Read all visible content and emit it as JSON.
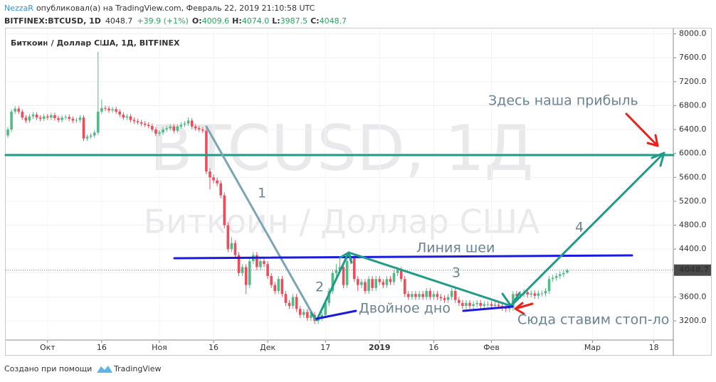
{
  "header": {
    "author": "NezzaR",
    "published": "опубликовал(а) на TradingView.com, Февраль 22, 2019 21:10:58 UTC",
    "symbol": "BITFINEX:BTCUSD, 1D",
    "last": "4048.7",
    "change": "+39.9 (+1%)",
    "o_label": "O:",
    "open": "4009.6",
    "h_label": "H:",
    "high": "4074.0",
    "l_label": "L:",
    "low": "3987.5",
    "c_label": "C:",
    "close": "4048.7"
  },
  "footer": {
    "text": "Создано при помощи",
    "brand": "TradingView"
  },
  "chart_data": {
    "type": "candlestick",
    "title": "Биткоин / Доллар США, 1Д, BITFINEX",
    "watermark": [
      "BTCUSD, 1Д",
      "Биткоин / Доллар США"
    ],
    "annotations": [
      "1",
      "2",
      "3",
      "4",
      "Линия шеи",
      "Двойное дно",
      "Здесь наша прибыль",
      "Сюда ставим стоп-ло"
    ],
    "up_color": "#53b987",
    "down_color": "#eb4d5c",
    "grid": true,
    "xlim": [
      -0.6,
      184.4
    ],
    "xticks": [
      {
        "value": 11,
        "label": "Окт"
      },
      {
        "value": 26,
        "label": "16"
      },
      {
        "value": 42,
        "label": "Ноя"
      },
      {
        "value": 57,
        "label": "16"
      },
      {
        "value": 72,
        "label": "Дек"
      },
      {
        "value": 88,
        "label": "17"
      },
      {
        "value": 103,
        "label": "2019"
      },
      {
        "value": 118,
        "label": "16"
      },
      {
        "value": 134,
        "label": "Фев"
      },
      {
        "value": 162,
        "label": "Мар"
      },
      {
        "value": 179,
        "label": "18"
      }
    ],
    "ylim": [
      2880,
      8090
    ],
    "yticks": [
      {
        "value": 3200,
        "label": "3200.0"
      },
      {
        "value": 3600,
        "label": "3600.0"
      },
      {
        "value": 4000,
        "label": "4000.0"
      },
      {
        "value": 4400,
        "label": "4400.0"
      },
      {
        "value": 4800,
        "label": "4800.0"
      },
      {
        "value": 5200,
        "label": "5200.0"
      },
      {
        "value": 5600,
        "label": "5600.0"
      },
      {
        "value": 6000,
        "label": "6000.0"
      },
      {
        "value": 6400,
        "label": "6400.0"
      },
      {
        "value": 6800,
        "label": "6800.0"
      },
      {
        "value": 7200,
        "label": "7200.0"
      },
      {
        "value": 7600,
        "label": "7600.0"
      },
      {
        "value": 8000,
        "label": "8000.0"
      }
    ],
    "candles": [
      [
        6300,
        6440,
        6260,
        6400
      ],
      [
        6400,
        6740,
        6360,
        6700
      ],
      [
        6700,
        6790,
        6660,
        6750
      ],
      [
        6750,
        6790,
        6660,
        6700
      ],
      [
        6700,
        6740,
        6560,
        6600
      ],
      [
        6600,
        6640,
        6510,
        6550
      ],
      [
        6550,
        6660,
        6510,
        6620
      ],
      [
        6620,
        6690,
        6580,
        6650
      ],
      [
        6650,
        6690,
        6560,
        6600
      ],
      [
        6600,
        6640,
        6540,
        6580
      ],
      [
        6580,
        6660,
        6540,
        6620
      ],
      [
        6620,
        6660,
        6560,
        6600
      ],
      [
        6600,
        6680,
        6560,
        6640
      ],
      [
        6640,
        6680,
        6550,
        6590
      ],
      [
        6590,
        6630,
        6520,
        6560
      ],
      [
        6560,
        6640,
        6520,
        6600
      ],
      [
        6600,
        6650,
        6560,
        6610
      ],
      [
        6610,
        6650,
        6540,
        6580
      ],
      [
        6580,
        6620,
        6510,
        6550
      ],
      [
        6550,
        6600,
        6510,
        6560
      ],
      [
        6560,
        6640,
        6520,
        6600
      ],
      [
        6600,
        6640,
        6210,
        6250
      ],
      [
        6250,
        6320,
        6210,
        6280
      ],
      [
        6280,
        6340,
        6240,
        6300
      ],
      [
        6300,
        6390,
        6260,
        6350
      ],
      [
        6350,
        7700,
        6310,
        6700
      ],
      [
        6700,
        6900,
        6660,
        6760
      ],
      [
        6760,
        6800,
        6710,
        6750
      ],
      [
        6750,
        6790,
        6680,
        6720
      ],
      [
        6720,
        6780,
        6680,
        6740
      ],
      [
        6740,
        6780,
        6660,
        6700
      ],
      [
        6700,
        6740,
        6610,
        6650
      ],
      [
        6650,
        6690,
        6560,
        6600
      ],
      [
        6600,
        6660,
        6560,
        6620
      ],
      [
        6620,
        6660,
        6520,
        6560
      ],
      [
        6560,
        6600,
        6500,
        6540
      ],
      [
        6540,
        6580,
        6480,
        6520
      ],
      [
        6520,
        6560,
        6460,
        6500
      ],
      [
        6500,
        6540,
        6440,
        6480
      ],
      [
        6480,
        6520,
        6420,
        6460
      ],
      [
        6460,
        6500,
        6360,
        6400
      ],
      [
        6400,
        6440,
        6290,
        6330
      ],
      [
        6330,
        6390,
        6290,
        6350
      ],
      [
        6350,
        6440,
        6310,
        6400
      ],
      [
        6400,
        6460,
        6360,
        6420
      ],
      [
        6420,
        6490,
        6380,
        6450
      ],
      [
        6450,
        6490,
        6340,
        6380
      ],
      [
        6380,
        6490,
        6340,
        6450
      ],
      [
        6450,
        6520,
        6410,
        6480
      ],
      [
        6480,
        6540,
        6440,
        6500
      ],
      [
        6500,
        6600,
        6460,
        6550
      ],
      [
        6550,
        6590,
        6410,
        6450
      ],
      [
        6450,
        6490,
        6380,
        6420
      ],
      [
        6420,
        6460,
        6360,
        6400
      ],
      [
        6400,
        6440,
        6340,
        6380
      ],
      [
        6380,
        6420,
        5650,
        5700
      ],
      [
        5700,
        5750,
        5400,
        5600
      ],
      [
        5600,
        5650,
        5500,
        5550
      ],
      [
        5550,
        5600,
        5450,
        5500
      ],
      [
        5500,
        5550,
        5250,
        5300
      ],
      [
        5300,
        5350,
        4750,
        4800
      ],
      [
        4800,
        4850,
        4350,
        4400
      ],
      [
        4400,
        4600,
        4350,
        4500
      ],
      [
        4500,
        4550,
        4250,
        4300
      ],
      [
        4300,
        4350,
        3950,
        4000
      ],
      [
        4000,
        4150,
        3950,
        4100
      ],
      [
        4100,
        4150,
        3650,
        3800
      ],
      [
        3800,
        4250,
        3750,
        4200
      ],
      [
        4200,
        4350,
        4150,
        4300
      ],
      [
        4300,
        4350,
        4050,
        4100
      ],
      [
        4100,
        4250,
        4050,
        4200
      ],
      [
        4200,
        4250,
        4100,
        4150
      ],
      [
        4150,
        4200,
        3900,
        3950
      ],
      [
        3950,
        4000,
        3750,
        3800
      ],
      [
        3800,
        3850,
        3650,
        3700
      ],
      [
        3700,
        3950,
        3650,
        3900
      ],
      [
        3900,
        3950,
        3600,
        3650
      ],
      [
        3650,
        3700,
        3450,
        3500
      ],
      [
        3500,
        3550,
        3400,
        3450
      ],
      [
        3450,
        3650,
        3400,
        3600
      ],
      [
        3600,
        3650,
        3350,
        3400
      ],
      [
        3400,
        3450,
        3250,
        3300
      ],
      [
        3300,
        3400,
        3250,
        3350
      ],
      [
        3350,
        3400,
        3200,
        3250
      ],
      [
        3250,
        3350,
        3200,
        3300
      ],
      [
        3300,
        3350,
        3150,
        3200
      ],
      [
        3200,
        3300,
        3150,
        3250
      ],
      [
        3250,
        3350,
        3200,
        3300
      ],
      [
        3300,
        3550,
        3250,
        3500
      ],
      [
        3500,
        3750,
        3450,
        3700
      ],
      [
        3700,
        4050,
        3650,
        4000
      ],
      [
        4000,
        4150,
        3950,
        4050
      ],
      [
        4050,
        4250,
        4000,
        4100
      ],
      [
        4100,
        4150,
        3750,
        3800
      ],
      [
        3800,
        4250,
        3750,
        4200
      ],
      [
        4200,
        4300,
        4150,
        4250
      ],
      [
        4250,
        4300,
        3850,
        3900
      ],
      [
        3900,
        3950,
        3700,
        3800
      ],
      [
        3800,
        3900,
        3750,
        3850
      ],
      [
        3850,
        3900,
        3650,
        3700
      ],
      [
        3700,
        3950,
        3650,
        3900
      ],
      [
        3900,
        3950,
        3700,
        3750
      ],
      [
        3750,
        3950,
        3700,
        3900
      ],
      [
        3900,
        3950,
        3800,
        3850
      ],
      [
        3850,
        3900,
        3750,
        3800
      ],
      [
        3800,
        3950,
        3750,
        3900
      ],
      [
        3900,
        3950,
        3800,
        3850
      ],
      [
        3850,
        4050,
        3800,
        4000
      ],
      [
        4000,
        4100,
        3950,
        4050
      ],
      [
        4050,
        4100,
        3850,
        3900
      ],
      [
        3900,
        3950,
        3600,
        3650
      ],
      [
        3650,
        3700,
        3550,
        3600
      ],
      [
        3600,
        3700,
        3550,
        3650
      ],
      [
        3650,
        3700,
        3550,
        3600
      ],
      [
        3600,
        3700,
        3550,
        3650
      ],
      [
        3650,
        3700,
        3550,
        3600
      ],
      [
        3600,
        3750,
        3550,
        3700
      ],
      [
        3700,
        3750,
        3550,
        3600
      ],
      [
        3600,
        3700,
        3550,
        3650
      ],
      [
        3650,
        3700,
        3550,
        3600
      ],
      [
        3600,
        3650,
        3530,
        3580
      ],
      [
        3580,
        3630,
        3500,
        3550
      ],
      [
        3550,
        3650,
        3500,
        3600
      ],
      [
        3600,
        3750,
        3550,
        3700
      ],
      [
        3700,
        3750,
        3500,
        3550
      ],
      [
        3550,
        3600,
        3450,
        3500
      ],
      [
        3500,
        3550,
        3400,
        3450
      ],
      [
        3450,
        3550,
        3400,
        3500
      ],
      [
        3500,
        3550,
        3400,
        3450
      ],
      [
        3450,
        3530,
        3400,
        3480
      ],
      [
        3480,
        3550,
        3430,
        3500
      ],
      [
        3500,
        3550,
        3400,
        3450
      ],
      [
        3450,
        3530,
        3400,
        3480
      ],
      [
        3480,
        3530,
        3430,
        3480
      ],
      [
        3480,
        3530,
        3400,
        3450
      ],
      [
        3450,
        3520,
        3400,
        3470
      ],
      [
        3470,
        3520,
        3400,
        3450
      ],
      [
        3450,
        3500,
        3370,
        3420
      ],
      [
        3420,
        3470,
        3350,
        3400
      ],
      [
        3400,
        3470,
        3350,
        3420
      ],
      [
        3420,
        3700,
        3370,
        3650
      ],
      [
        3650,
        3700,
        3570,
        3620
      ],
      [
        3620,
        3700,
        3570,
        3650
      ],
      [
        3650,
        3730,
        3600,
        3680
      ],
      [
        3680,
        3730,
        3590,
        3640
      ],
      [
        3640,
        3710,
        3590,
        3660
      ],
      [
        3660,
        3710,
        3570,
        3620
      ],
      [
        3620,
        3710,
        3570,
        3660
      ],
      [
        3660,
        3710,
        3610,
        3660
      ],
      [
        3660,
        3750,
        3610,
        3700
      ],
      [
        3700,
        3950,
        3650,
        3900
      ],
      [
        3900,
        3970,
        3850,
        3920
      ],
      [
        3920,
        4000,
        3870,
        3950
      ],
      [
        3950,
        4030,
        3900,
        3980
      ],
      [
        3980,
        4050,
        3930,
        4000
      ],
      [
        4009.6,
        4074,
        3987.5,
        4048.7
      ]
    ]
  }
}
